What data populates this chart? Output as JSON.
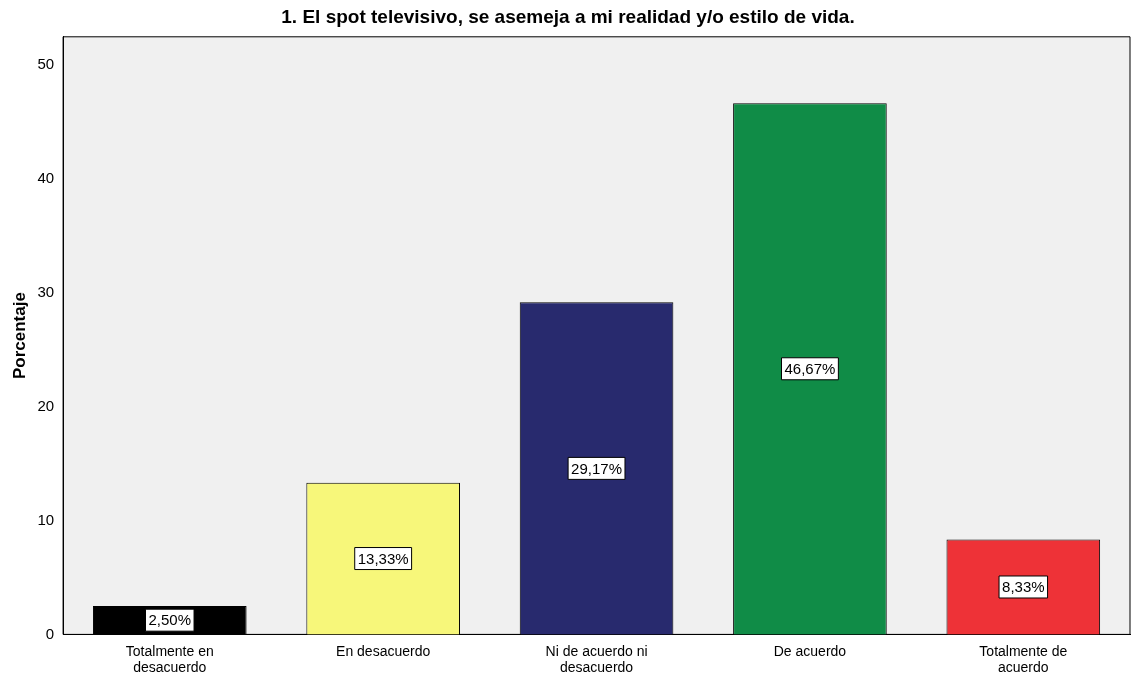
{
  "chart_data": {
    "type": "bar",
    "title": "1. El spot televisivo, se asemeja a mi realidad y/o estilo de vida.",
    "ylabel": "Porcentaje",
    "categories": [
      "Totalmente en desacuerdo",
      "En desacuerdo",
      "Ni de acuerdo ni desacuerdo",
      "De acuerdo",
      "Totalmente de acuerdo"
    ],
    "values": [
      2.5,
      13.33,
      29.17,
      46.67,
      8.33
    ],
    "colors": [
      "#000000",
      "#f7f77a",
      "#282a6e",
      "#108c47",
      "#ee3237"
    ],
    "value_labels": [
      "2,50%",
      "13,33%",
      "29,17%",
      "46,67%",
      "8,33%"
    ],
    "ylim": [
      0,
      52.5
    ],
    "yticks": [
      0,
      10,
      20,
      30,
      40,
      50
    ],
    "grid": false,
    "legend": false
  }
}
